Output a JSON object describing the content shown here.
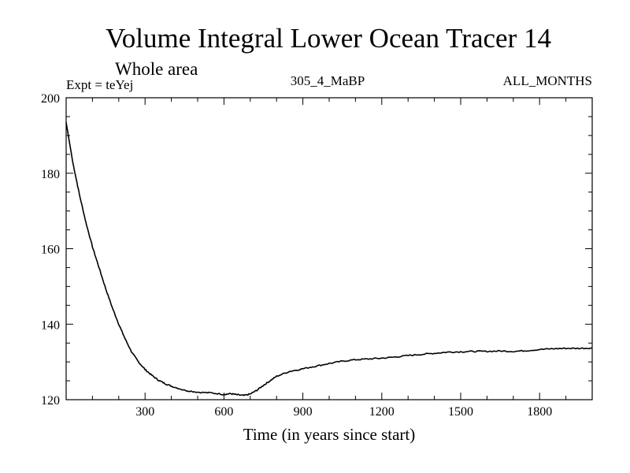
{
  "chart_data": {
    "type": "line",
    "title": "Volume Integral Lower Ocean Tracer 14",
    "subtitle": "Whole area",
    "expt_label": "Expt = teYej",
    "run_label": "305_4_MaBP",
    "period_label": "ALL_MONTHS",
    "xlabel": "Time (in years since start)",
    "ylabel": "",
    "xlim": [
      0,
      2000
    ],
    "ylim": [
      120,
      200
    ],
    "x_ticks": [
      300,
      600,
      900,
      1200,
      1500,
      1800
    ],
    "y_ticks": [
      120,
      140,
      160,
      180,
      200
    ],
    "series": [
      {
        "name": "Tracer 14",
        "color": "#000000",
        "x": [
          0,
          25,
          50,
          75,
          100,
          125,
          150,
          175,
          200,
          225,
          250,
          275,
          300,
          325,
          350,
          375,
          400,
          450,
          500,
          550,
          600,
          625,
          650,
          675,
          700,
          725,
          750,
          775,
          800,
          850,
          900,
          950,
          1000,
          1050,
          1100,
          1150,
          1200,
          1250,
          1300,
          1350,
          1400,
          1450,
          1500,
          1550,
          1600,
          1650,
          1700,
          1750,
          1800,
          1850,
          1900,
          1950,
          2000
        ],
        "y": [
          193.5,
          183.0,
          174.5,
          167.0,
          160.5,
          155.0,
          149.5,
          144.5,
          140.0,
          136.0,
          132.5,
          130.0,
          128.0,
          126.5,
          125.2,
          124.3,
          123.6,
          122.5,
          122.0,
          121.8,
          121.4,
          121.6,
          121.3,
          121.1,
          121.5,
          122.5,
          123.8,
          125.0,
          126.2,
          127.5,
          128.2,
          128.9,
          129.6,
          130.2,
          130.6,
          130.8,
          131.0,
          131.3,
          131.7,
          132.0,
          132.3,
          132.6,
          132.7,
          132.8,
          132.8,
          132.9,
          132.8,
          133.0,
          133.3,
          133.5,
          133.6,
          133.6,
          133.7
        ]
      }
    ]
  }
}
